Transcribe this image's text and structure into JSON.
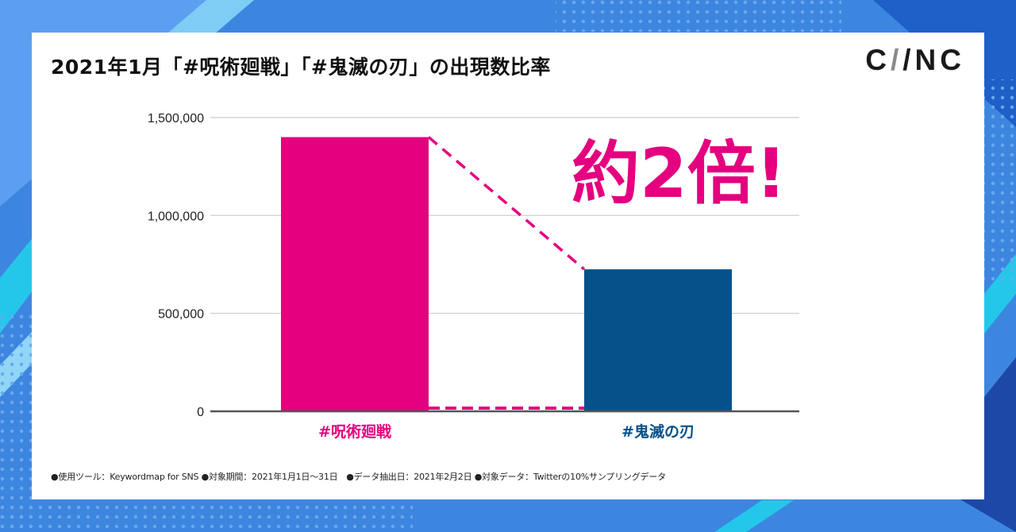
{
  "title": "2021年1月「#呪術廻戦」「#鬼滅の刃」の出現数比率",
  "brand": {
    "part1": "C",
    "slash": "/",
    "part2": "/NC"
  },
  "callout": "約2倍!",
  "footnote": "●使用ツール：Keywordmap for SNS ●対象期間：2021年1月1日〜31日　●データ抽出日：2021年2月2日 ●対象データ：Twitterの10%サンプリングデータ",
  "colors": {
    "accent": "#e4007f",
    "secondary": "#05528a",
    "axis": "#555555",
    "grid": "#cccccc"
  },
  "chart_data": {
    "type": "bar",
    "categories": [
      "#呪術廻戦",
      "#鬼滅の刃"
    ],
    "values": [
      1400000,
      725000
    ],
    "bar_colors": [
      "#e4007f",
      "#05528a"
    ],
    "ylim": [
      0,
      1500000
    ],
    "yticks": [
      0,
      500000,
      1000000,
      1500000
    ],
    "ytick_labels": [
      "0",
      "500,000",
      "1,000,000",
      "1,500,000"
    ],
    "xlabel": "",
    "ylabel": "",
    "grid": true,
    "legend": "none"
  }
}
